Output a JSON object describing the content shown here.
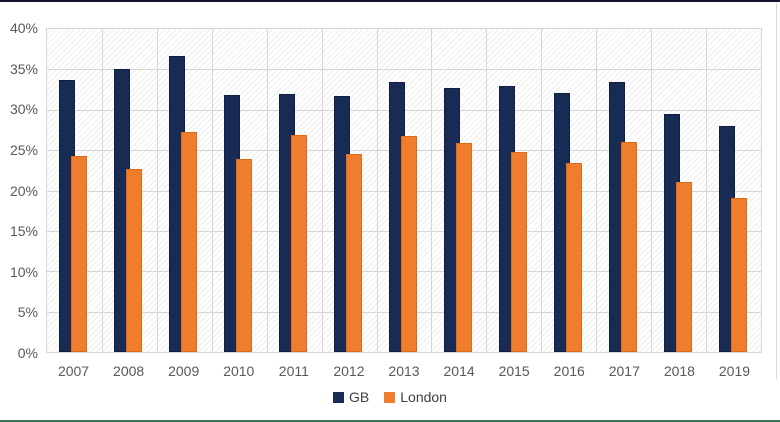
{
  "chart_data": {
    "type": "bar",
    "title": "",
    "categories": [
      "2007",
      "2008",
      "2009",
      "2010",
      "2011",
      "2012",
      "2013",
      "2014",
      "2015",
      "2016",
      "2017",
      "2018",
      "2019"
    ],
    "series": [
      {
        "name": "GB",
        "color": "#172b55",
        "border_color": "#101f40",
        "values": [
          33.7,
          35.1,
          36.6,
          31.8,
          32.0,
          31.7,
          33.5,
          32.7,
          33.0,
          32.1,
          33.4,
          29.5,
          28.0
        ]
      },
      {
        "name": "London",
        "color": "#ee7d2e",
        "border_color": "#dd6a15",
        "values": [
          24.3,
          22.7,
          27.3,
          23.9,
          26.9,
          24.5,
          26.7,
          25.9,
          24.8,
          23.4,
          26.0,
          21.1,
          19.1
        ]
      }
    ],
    "ylim": [
      0,
      40
    ],
    "y_tick_step": 5,
    "y_tick_labels": [
      "40%",
      "35%",
      "30%",
      "25%",
      "20%",
      "15%",
      "10%",
      "5%",
      "0%"
    ],
    "unit": "%",
    "grid": true,
    "legend_position": "bottom",
    "plot_background": "diagonal-hatch"
  },
  "style": {
    "gridline_color": "#d6d6d6",
    "axis_text_color": "#595959",
    "legend_text_color": "#404040",
    "top_border_color": "#13142f",
    "bottom_border_color": "#3f6f58",
    "right_edge_color": "#d9d9d9"
  }
}
